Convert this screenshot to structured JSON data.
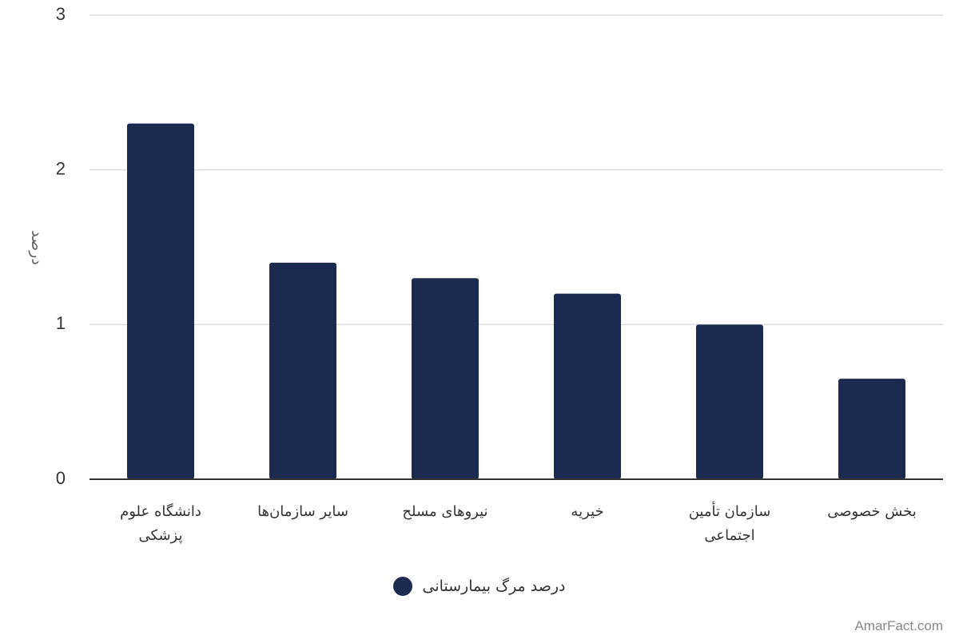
{
  "chart_data": {
    "type": "bar",
    "y_label": "درصد",
    "categories": [
      "دانشگاه علوم پزشکی",
      "سایر سازمان‌ها",
      "نیروهای مسلح",
      "خیریه",
      "سازمان تأمین اجتماعی",
      "بخش خصوصی"
    ],
    "series": [
      {
        "name": "درصد مرگ بیمارستانی",
        "color": "#1b2a4e",
        "values": [
          2.3,
          1.4,
          1.3,
          1.2,
          1.0,
          0.65
        ]
      }
    ],
    "ylim": [
      0,
      3
    ],
    "yticks": [
      0,
      1,
      2,
      3
    ],
    "grid": true,
    "watermark": "AmarFact.com"
  }
}
